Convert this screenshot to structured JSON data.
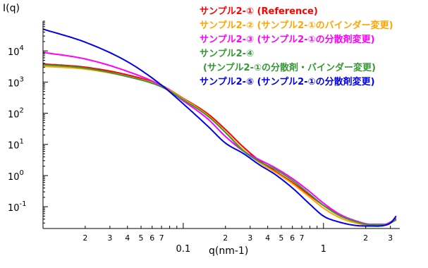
{
  "chart_data": {
    "type": "line",
    "ylabel": "I(q)",
    "xlabel": "q(nm-1)",
    "x_scale": "log",
    "y_scale": "log",
    "xlim": [
      0.01,
      3.5
    ],
    "ylim": [
      0.02,
      90000
    ],
    "x_major_ticks": [
      {
        "value": 0.1,
        "label": "0.1"
      },
      {
        "value": 1,
        "label": "1"
      }
    ],
    "x_minor_ticks": [
      {
        "value": 0.02,
        "label": "2"
      },
      {
        "value": 0.03,
        "label": "3"
      },
      {
        "value": 0.04,
        "label": "4"
      },
      {
        "value": 0.05,
        "label": "5"
      },
      {
        "value": 0.06,
        "label": "6"
      },
      {
        "value": 0.07,
        "label": "7"
      },
      {
        "value": 0.2,
        "label": "2"
      },
      {
        "value": 0.3,
        "label": "3"
      },
      {
        "value": 0.4,
        "label": "4"
      },
      {
        "value": 0.5,
        "label": "5"
      },
      {
        "value": 0.6,
        "label": "6"
      },
      {
        "value": 0.7,
        "label": "7"
      },
      {
        "value": 2,
        "label": "2"
      },
      {
        "value": 3,
        "label": "3"
      }
    ],
    "y_ticks": [
      {
        "value": 10000,
        "base": "10",
        "exp": "4"
      },
      {
        "value": 1000,
        "base": "10",
        "exp": "3"
      },
      {
        "value": 100,
        "base": "10",
        "exp": "2"
      },
      {
        "value": 10,
        "base": "10",
        "exp": "1"
      },
      {
        "value": 1,
        "base": "10",
        "exp": "0"
      },
      {
        "value": 0.1,
        "base": "10",
        "exp": "-1"
      }
    ],
    "legend_position": "top-right",
    "series": [
      {
        "name": "サンプル2-① (Reference)",
        "color": "#ff0000",
        "x": [
          0.01,
          0.02,
          0.04,
          0.07,
          0.1,
          0.15,
          0.2,
          0.27,
          0.35,
          0.45,
          0.6,
          0.8,
          1.0,
          1.3,
          1.7,
          2.2,
          2.7,
          3.0,
          3.3
        ],
        "y": [
          3800,
          3000,
          1700,
          780,
          300,
          95,
          30,
          8,
          3.0,
          1.4,
          0.6,
          0.23,
          0.11,
          0.055,
          0.035,
          0.027,
          0.027,
          0.032,
          0.042
        ]
      },
      {
        "name": "サンプル2-② (サンプル2-①のバインダー変更)",
        "color": "#ffa500",
        "x": [
          0.01,
          0.02,
          0.04,
          0.07,
          0.1,
          0.15,
          0.2,
          0.27,
          0.35,
          0.45,
          0.6,
          0.8,
          1.0,
          1.3,
          1.7,
          2.2,
          2.7,
          3.0,
          3.3
        ],
        "y": [
          3200,
          2600,
          1500,
          750,
          290,
          85,
          25,
          6.5,
          2.6,
          1.3,
          0.55,
          0.2,
          0.09,
          0.045,
          0.03,
          0.025,
          0.026,
          0.03,
          0.038
        ]
      },
      {
        "name": "サンプル2-③ (サンプル2-①の分散剤変更)",
        "color": "#ff00ff",
        "x": [
          0.01,
          0.02,
          0.04,
          0.07,
          0.1,
          0.15,
          0.2,
          0.27,
          0.35,
          0.45,
          0.6,
          0.8,
          1.0,
          1.3,
          1.7,
          2.2,
          2.7,
          3.0,
          3.3
        ],
        "y": [
          9000,
          5500,
          2200,
          760,
          250,
          65,
          18,
          6.0,
          3.2,
          1.8,
          0.8,
          0.3,
          0.13,
          0.058,
          0.035,
          0.027,
          0.027,
          0.031,
          0.04
        ]
      },
      {
        "name": "サンプル2-④",
        "name_line2": "(サンプル2-①の分散剤・バインダー変更)",
        "color": "#339933",
        "x": [
          0.01,
          0.02,
          0.04,
          0.07,
          0.1,
          0.15,
          0.2,
          0.27,
          0.35,
          0.45,
          0.6,
          0.8,
          1.0,
          1.3,
          1.7,
          2.2,
          2.7,
          3.0,
          3.3
        ],
        "y": [
          3600,
          2800,
          1500,
          700,
          270,
          80,
          24,
          6.0,
          2.8,
          1.6,
          0.7,
          0.25,
          0.11,
          0.052,
          0.033,
          0.026,
          0.026,
          0.03,
          0.038
        ]
      },
      {
        "name": "サンプル2-⑤ (サンプル2-①の分散剤変更)",
        "color": "#0000ee",
        "x": [
          0.01,
          0.02,
          0.04,
          0.07,
          0.1,
          0.15,
          0.2,
          0.27,
          0.35,
          0.45,
          0.6,
          0.8,
          1.0,
          1.3,
          1.7,
          2.2,
          2.7,
          3.0,
          3.3
        ],
        "y": [
          50000,
          19000,
          4500,
          800,
          200,
          38,
          11,
          5.0,
          2.2,
          1.1,
          0.4,
          0.12,
          0.05,
          0.032,
          0.025,
          0.024,
          0.025,
          0.03,
          0.05
        ]
      }
    ]
  }
}
